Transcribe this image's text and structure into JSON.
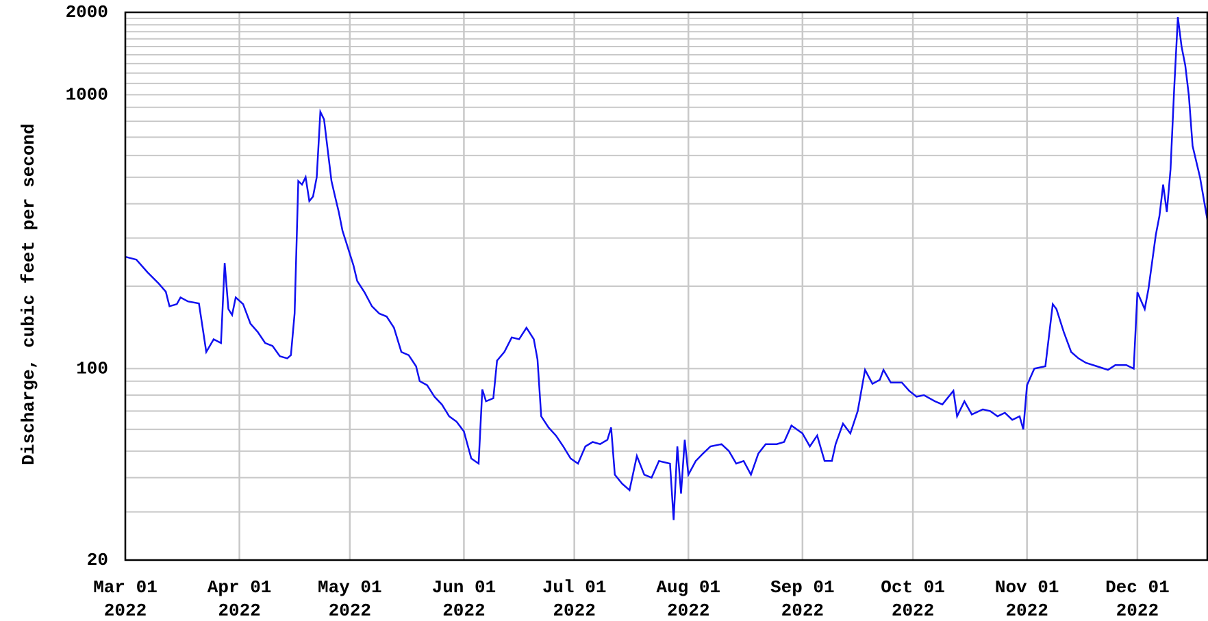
{
  "chart_data": {
    "type": "line",
    "ylabel": "Discharge, cubic feet per second",
    "log_y": true,
    "grid": true,
    "color": "#1010f0",
    "xlim": [
      "2022-03-01",
      "2022-12-20"
    ],
    "xticks": [
      {
        "value": "2022-03-01",
        "label": "Mar 01\n2022"
      },
      {
        "value": "2022-04-01",
        "label": "Apr 01\n2022"
      },
      {
        "value": "2022-05-01",
        "label": "May 01\n2022"
      },
      {
        "value": "2022-06-01",
        "label": "Jun 01\n2022"
      },
      {
        "value": "2022-07-01",
        "label": "Jul 01\n2022"
      },
      {
        "value": "2022-08-01",
        "label": "Aug 01\n2022"
      },
      {
        "value": "2022-09-01",
        "label": "Sep 01\n2022"
      },
      {
        "value": "2022-10-01",
        "label": "Oct 01\n2022"
      },
      {
        "value": "2022-11-01",
        "label": "Nov 01\n2022"
      },
      {
        "value": "2022-12-01",
        "label": "Dec 01\n2022"
      }
    ],
    "ylim": [
      20,
      2000
    ],
    "yticks": [
      20,
      100,
      1000,
      2000
    ],
    "minor_yticks": [
      30,
      40,
      50,
      60,
      70,
      80,
      90,
      200,
      300,
      400,
      500,
      600,
      700,
      800,
      900,
      1100,
      1200,
      1300,
      1400,
      1500,
      1600,
      1700,
      1800,
      1900
    ],
    "x": [
      "2022-03-01",
      "2022-03-04",
      "2022-03-07",
      "2022-03-10",
      "2022-03-12",
      "2022-03-13",
      "2022-03-15",
      "2022-03-16",
      "2022-03-18",
      "2022-03-21",
      "2022-03-22",
      "2022-03-23",
      "2022-03-25",
      "2022-03-27",
      "2022-03-28",
      "2022-03-29",
      "2022-03-30",
      "2022-03-31",
      "2022-04-02",
      "2022-04-04",
      "2022-04-06",
      "2022-04-08",
      "2022-04-10",
      "2022-04-12",
      "2022-04-14",
      "2022-04-15",
      "2022-04-16",
      "2022-04-17",
      "2022-04-18",
      "2022-04-19",
      "2022-04-20",
      "2022-04-21",
      "2022-04-22",
      "2022-04-23",
      "2022-04-24",
      "2022-04-25",
      "2022-04-26",
      "2022-04-27",
      "2022-04-28",
      "2022-04-29",
      "2022-04-30",
      "2022-05-02",
      "2022-05-03",
      "2022-05-05",
      "2022-05-07",
      "2022-05-09",
      "2022-05-11",
      "2022-05-13",
      "2022-05-15",
      "2022-05-17",
      "2022-05-19",
      "2022-05-20",
      "2022-05-22",
      "2022-05-24",
      "2022-05-26",
      "2022-05-28",
      "2022-05-30",
      "2022-06-01",
      "2022-06-03",
      "2022-06-05",
      "2022-06-06",
      "2022-06-07",
      "2022-06-09",
      "2022-06-10",
      "2022-06-12",
      "2022-06-14",
      "2022-06-16",
      "2022-06-18",
      "2022-06-20",
      "2022-06-21",
      "2022-06-22",
      "2022-06-24",
      "2022-06-26",
      "2022-06-28",
      "2022-06-30",
      "2022-07-02",
      "2022-07-04",
      "2022-07-06",
      "2022-07-08",
      "2022-07-10",
      "2022-07-11",
      "2022-07-12",
      "2022-07-14",
      "2022-07-16",
      "2022-07-18",
      "2022-07-20",
      "2022-07-22",
      "2022-07-24",
      "2022-07-27",
      "2022-07-28",
      "2022-07-29",
      "2022-07-30",
      "2022-07-31",
      "2022-08-01",
      "2022-08-03",
      "2022-08-05",
      "2022-08-07",
      "2022-08-10",
      "2022-08-12",
      "2022-08-14",
      "2022-08-16",
      "2022-08-18",
      "2022-08-20",
      "2022-08-22",
      "2022-08-25",
      "2022-08-27",
      "2022-08-29",
      "2022-09-01",
      "2022-09-03",
      "2022-09-05",
      "2022-09-07",
      "2022-09-09",
      "2022-09-10",
      "2022-09-12",
      "2022-09-14",
      "2022-09-16",
      "2022-09-18",
      "2022-09-20",
      "2022-09-22",
      "2022-09-23",
      "2022-09-25",
      "2022-09-28",
      "2022-09-30",
      "2022-10-02",
      "2022-10-04",
      "2022-10-07",
      "2022-10-09",
      "2022-10-12",
      "2022-10-13",
      "2022-10-15",
      "2022-10-17",
      "2022-10-20",
      "2022-10-22",
      "2022-10-24",
      "2022-10-26",
      "2022-10-28",
      "2022-10-30",
      "2022-10-31",
      "2022-11-01",
      "2022-11-03",
      "2022-11-06",
      "2022-11-08",
      "2022-11-09",
      "2022-11-11",
      "2022-11-13",
      "2022-11-15",
      "2022-11-17",
      "2022-11-20",
      "2022-11-23",
      "2022-11-25",
      "2022-11-28",
      "2022-11-30",
      "2022-12-01",
      "2022-12-03",
      "2022-12-04",
      "2022-12-06",
      "2022-12-07",
      "2022-12-08",
      "2022-12-09",
      "2022-12-10",
      "2022-12-11",
      "2022-12-12",
      "2022-12-13",
      "2022-12-14",
      "2022-12-15",
      "2022-12-16",
      "2022-12-18",
      "2022-12-20"
    ],
    "values": [
      256,
      250,
      225,
      205,
      191,
      169,
      172,
      182,
      176,
      173,
      141,
      115,
      128,
      124,
      243,
      165,
      157,
      182,
      172,
      146,
      136,
      124,
      121,
      111,
      109,
      112,
      159,
      484,
      470,
      500,
      409,
      425,
      500,
      866,
      813,
      627,
      485,
      425,
      373,
      319,
      290,
      238,
      209,
      190,
      169,
      159,
      155,
      141,
      115,
      112,
      102,
      90,
      87,
      79,
      74,
      67,
      64,
      59,
      47,
      45,
      84,
      76,
      78,
      107,
      115,
      130,
      128,
      141,
      128,
      108,
      67,
      61,
      57,
      52,
      47,
      45,
      52,
      54,
      53,
      55,
      61,
      41,
      38,
      36,
      48,
      41,
      40,
      46,
      45,
      28,
      52,
      35,
      55,
      41,
      46,
      49,
      52,
      53,
      50,
      45,
      46,
      41,
      49,
      53,
      53,
      54,
      62,
      58,
      52,
      57,
      46,
      46,
      53,
      63,
      58,
      70,
      99,
      88,
      91,
      99,
      89,
      89,
      83,
      79,
      80,
      76,
      74,
      83,
      67,
      76,
      68,
      71,
      70,
      67,
      69,
      65,
      67,
      60,
      87,
      100,
      102,
      172,
      165,
      136,
      115,
      109,
      105,
      102,
      99,
      103,
      103,
      100,
      190,
      165,
      195,
      308,
      361,
      470,
      373,
      535,
      1050,
      1920,
      1500,
      1280,
      990,
      650,
      500,
      350
    ]
  }
}
